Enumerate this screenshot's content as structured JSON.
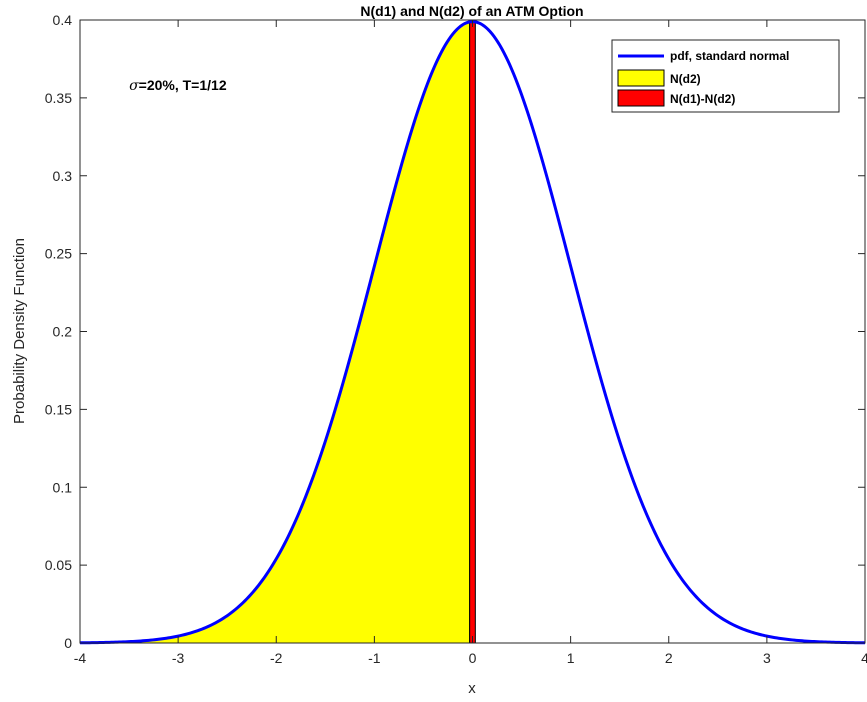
{
  "chart_data": {
    "type": "area",
    "title": "N(d1) and N(d2) of an ATM Option",
    "xlabel": "x",
    "ylabel": "Probability Density Function",
    "xlim": [
      -4,
      4
    ],
    "ylim": [
      0,
      0.4
    ],
    "xticks": [
      -4,
      -3,
      -2,
      -1,
      0,
      1,
      2,
      3,
      4
    ],
    "yticks": [
      0,
      0.05,
      0.1,
      0.15,
      0.2,
      0.25,
      0.3,
      0.35,
      0.4
    ],
    "xtick_labels": [
      "-4",
      "-3",
      "-2",
      "-1",
      "0",
      "1",
      "2",
      "3",
      "4"
    ],
    "ytick_labels": [
      "0",
      "0.05",
      "0.1",
      "0.15",
      "0.2",
      "0.25",
      "0.3",
      "0.35",
      "0.4"
    ],
    "grid": false,
    "legend_position": "top-right",
    "annotation": {
      "symbol": "σ",
      "text": "=20%, T=1/12",
      "x": -3.5,
      "y": 0.355
    },
    "series": [
      {
        "name": "pdf, standard normal",
        "kind": "line",
        "function": "standard normal pdf",
        "x_range": [
          -4,
          4
        ],
        "color": "#0000ff"
      },
      {
        "name": "N(d2)",
        "kind": "area",
        "x_range": [
          -4,
          -0.0289
        ],
        "color": "#ffff00"
      },
      {
        "name": "N(d1)-N(d2)",
        "kind": "area",
        "x_range": [
          -0.0289,
          0.0289
        ],
        "color": "#ff0000"
      }
    ]
  }
}
